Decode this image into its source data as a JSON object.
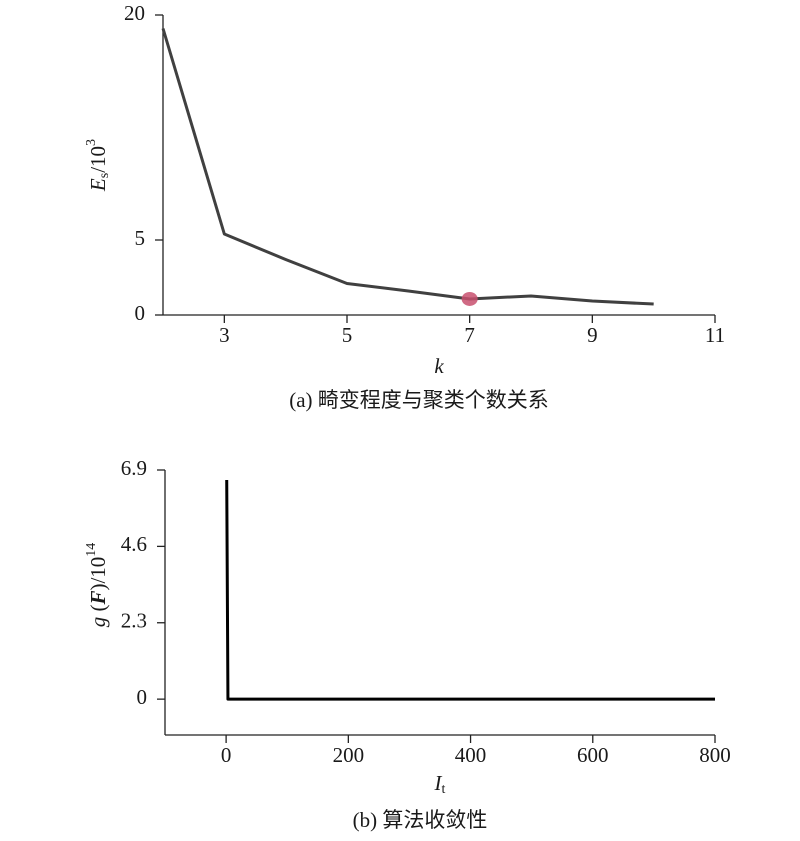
{
  "chart_data": [
    {
      "type": "line",
      "x": [
        2,
        3,
        4,
        5,
        6,
        7,
        8,
        9,
        10
      ],
      "values": [
        19.1,
        5.4,
        3.7,
        2.1,
        1.6,
        1.07,
        1.27,
        0.93,
        0.73
      ],
      "color": "#404040",
      "highlight": {
        "index": 5,
        "color": "#c8506e"
      },
      "xlim": [
        2,
        11
      ],
      "xticks": [
        3,
        5,
        7,
        9,
        11
      ],
      "ylim": [
        0,
        20
      ],
      "yticks": [
        0,
        5,
        20
      ],
      "xlabel": [
        {
          "text": "k",
          "style": "italic"
        }
      ],
      "ylabel": [
        {
          "text": "E",
          "style": "italic"
        },
        {
          "text": "s",
          "style": "sub"
        },
        {
          "text": "/10",
          "style": "normal"
        },
        {
          "text": "3",
          "style": "sup"
        }
      ],
      "caption": "(a) 畸变程度与聚类个数关系"
    },
    {
      "type": "line",
      "x": [
        1,
        3,
        800
      ],
      "values": [
        6.6,
        0,
        0
      ],
      "color": "#000000",
      "xlim": [
        -100,
        800
      ],
      "xticks": [
        0,
        200,
        400,
        600,
        800
      ],
      "ylim": [
        -1.08,
        6.9
      ],
      "yticks": [
        0,
        2.3,
        4.6,
        6.9
      ],
      "xlabel": [
        {
          "text": "I",
          "style": "italic"
        },
        {
          "text": "t",
          "style": "sub"
        }
      ],
      "ylabel": [
        {
          "text": "g",
          "style": "italic"
        },
        {
          "text": " (",
          "style": "normal"
        },
        {
          "text": "F",
          "style": "bolditalic"
        },
        {
          "text": ")/10",
          "style": "normal"
        },
        {
          "text": "14",
          "style": "sup"
        }
      ],
      "caption": "(b) 算法收敛性"
    }
  ]
}
